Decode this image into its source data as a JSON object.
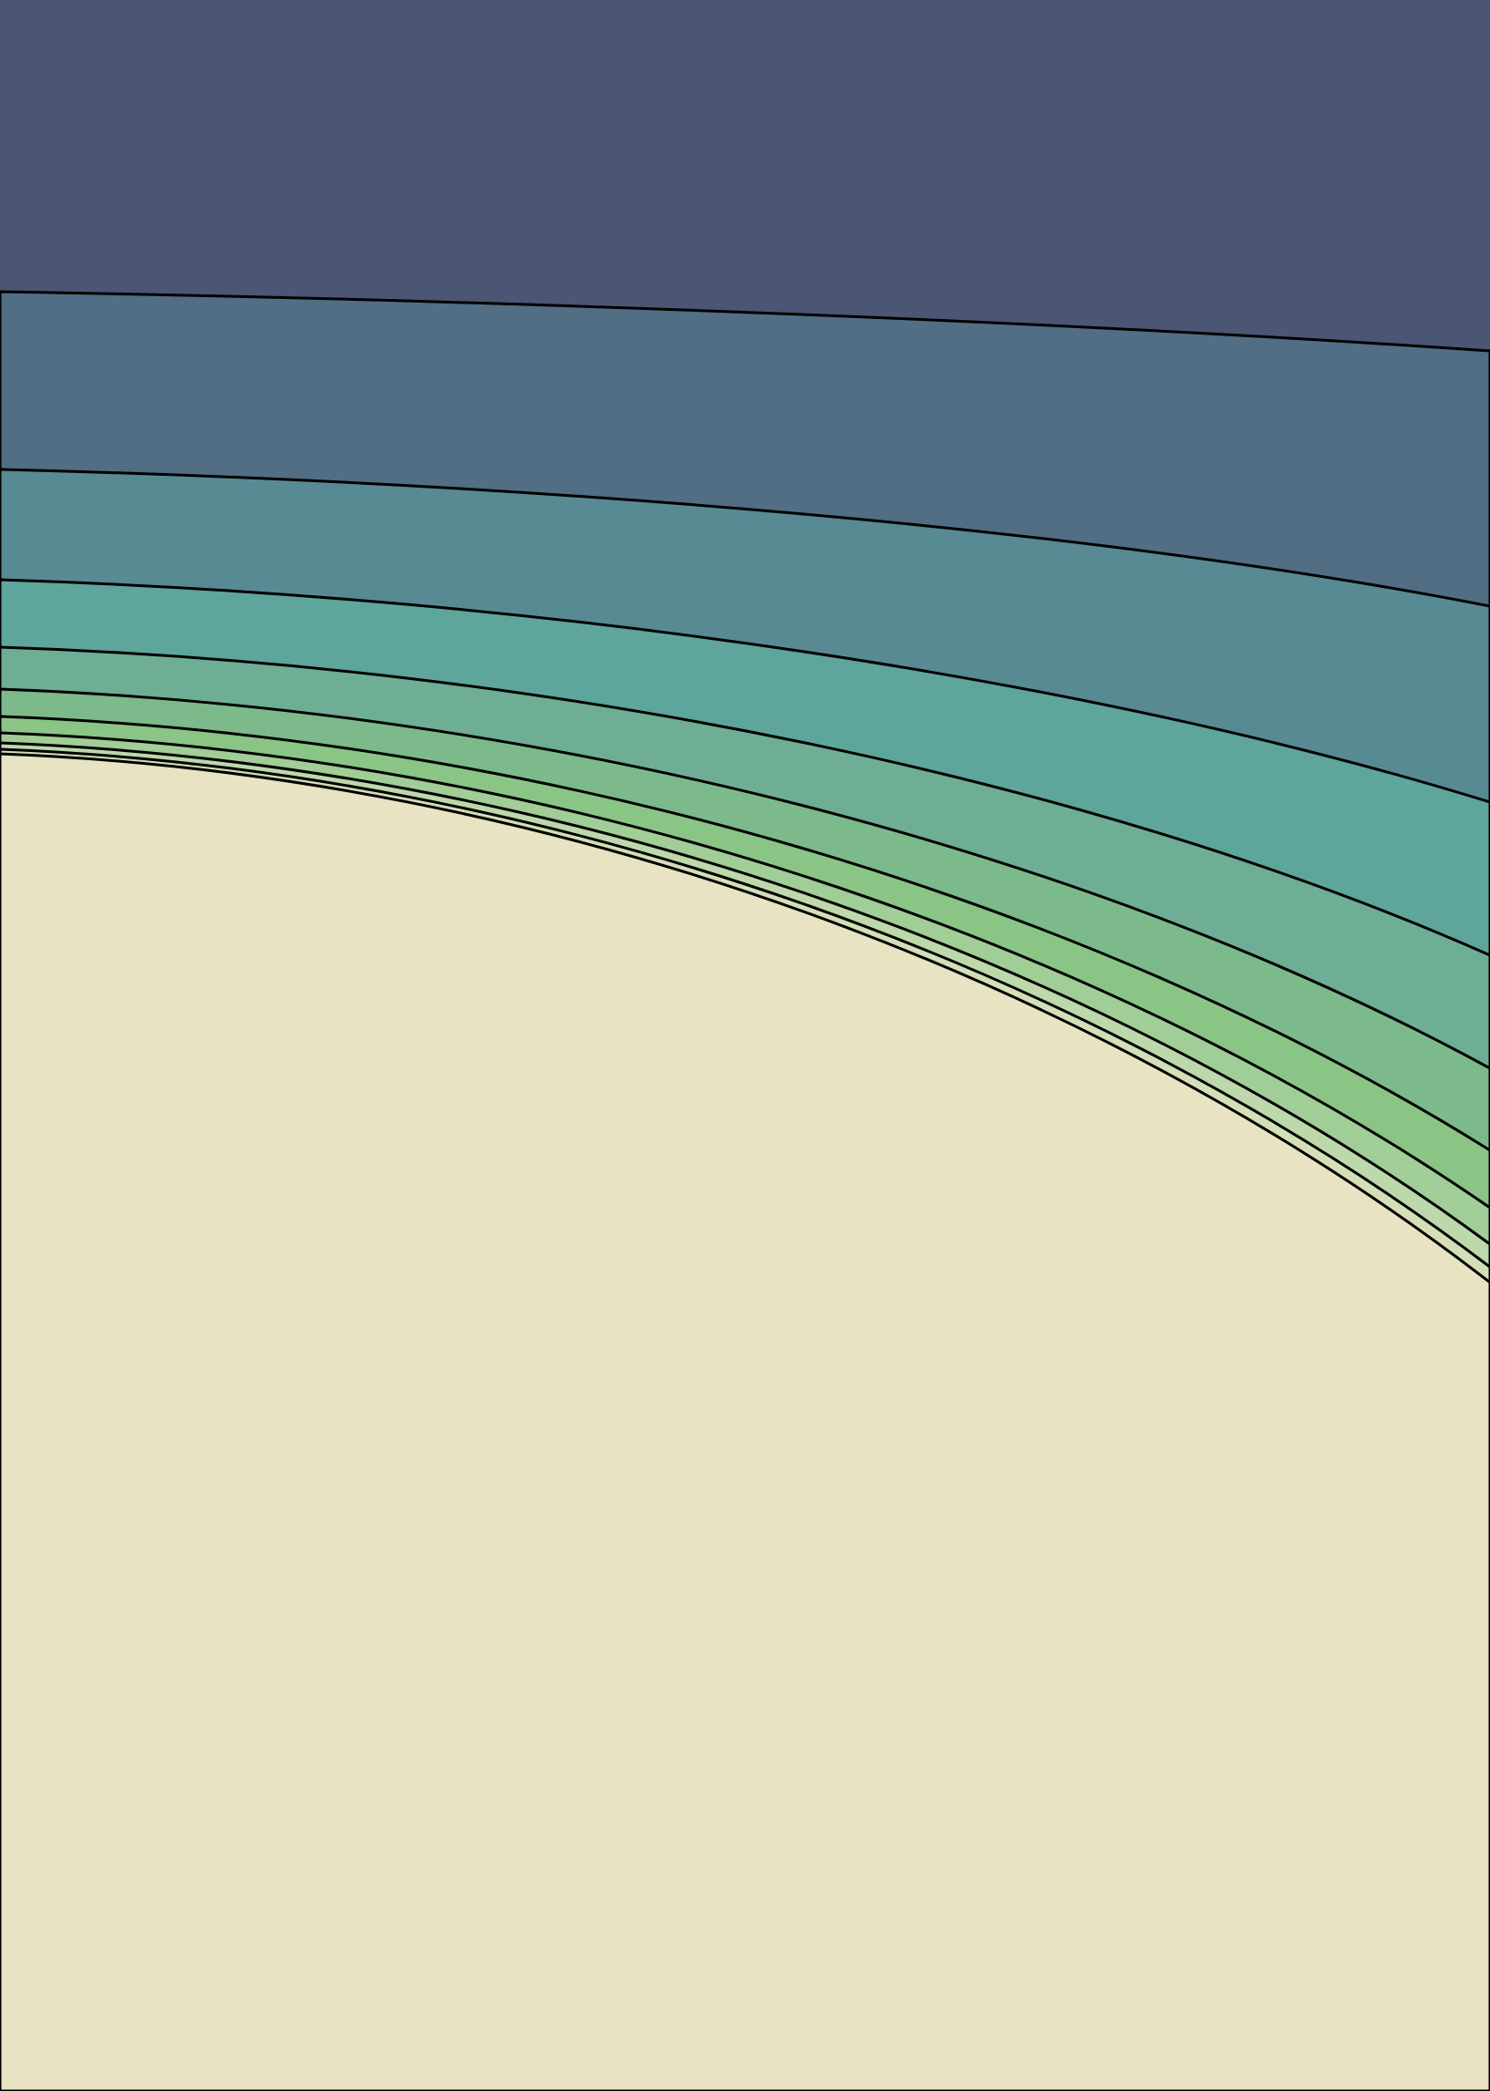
{
  "artwork": {
    "kind": "abstract-contour-bands",
    "outline_color": "#000000",
    "bands": [
      {
        "name": "band-1",
        "color": "#4a5673"
      },
      {
        "name": "band-2",
        "color": "#516e84"
      },
      {
        "name": "band-3",
        "color": "#588a94"
      },
      {
        "name": "band-4",
        "color": "#5ea59c"
      },
      {
        "name": "band-5",
        "color": "#6eae94"
      },
      {
        "name": "band-6",
        "color": "#7cba8b"
      },
      {
        "name": "band-7",
        "color": "#8ac586"
      },
      {
        "name": "band-8",
        "color": "#a1cd96"
      },
      {
        "name": "band-9",
        "color": "#bdd8aa"
      },
      {
        "name": "band-10",
        "color": "#d3dfb6"
      },
      {
        "name": "band-11",
        "color": "#e7e3c3"
      }
    ]
  }
}
